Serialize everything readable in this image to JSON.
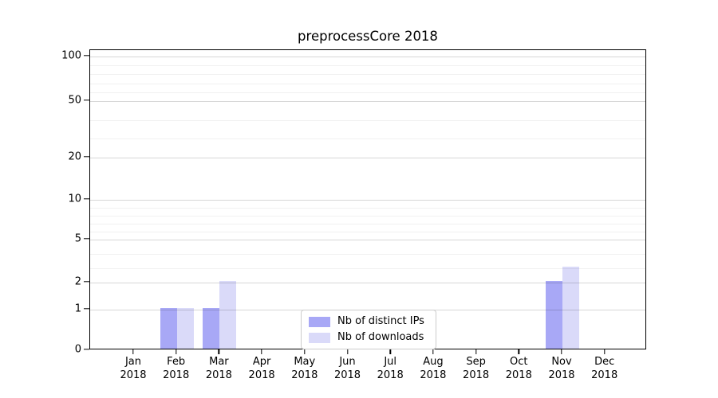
{
  "title": "preprocessCore 2018",
  "chart_data": {
    "type": "bar",
    "title": "preprocessCore 2018",
    "xlabel": "",
    "ylabel": "",
    "categories": [
      "Jan 2018",
      "Feb 2018",
      "Mar 2018",
      "Apr 2018",
      "May 2018",
      "Jun 2018",
      "Jul 2018",
      "Aug 2018",
      "Sep 2018",
      "Oct 2018",
      "Nov 2018",
      "Dec 2018"
    ],
    "series": [
      {
        "name": "Nb of distinct IPs",
        "color": "#a8a8f6",
        "values": [
          0,
          1,
          1,
          0,
          0,
          0,
          0,
          0,
          0,
          0,
          2,
          0
        ]
      },
      {
        "name": "Nb of downloads",
        "color": "#dadaf9",
        "values": [
          0,
          1,
          2,
          0,
          0,
          0,
          0,
          0,
          0,
          0,
          3,
          0
        ]
      }
    ],
    "y_axis": {
      "scale": "log-like",
      "ylim": [
        0,
        100
      ],
      "ticks": [
        0,
        1,
        2,
        5,
        10,
        20,
        50,
        100
      ],
      "minor_ticks": [
        3,
        4,
        6,
        7,
        8,
        9,
        30,
        40,
        60,
        70,
        80,
        90
      ]
    },
    "grid": "horizontal",
    "legend_position": "bottom-center"
  },
  "legend": {
    "items": [
      {
        "label": "Nb of distinct IPs",
        "color": "#a8a8f6"
      },
      {
        "label": "Nb of downloads",
        "color": "#dadaf9"
      }
    ]
  }
}
